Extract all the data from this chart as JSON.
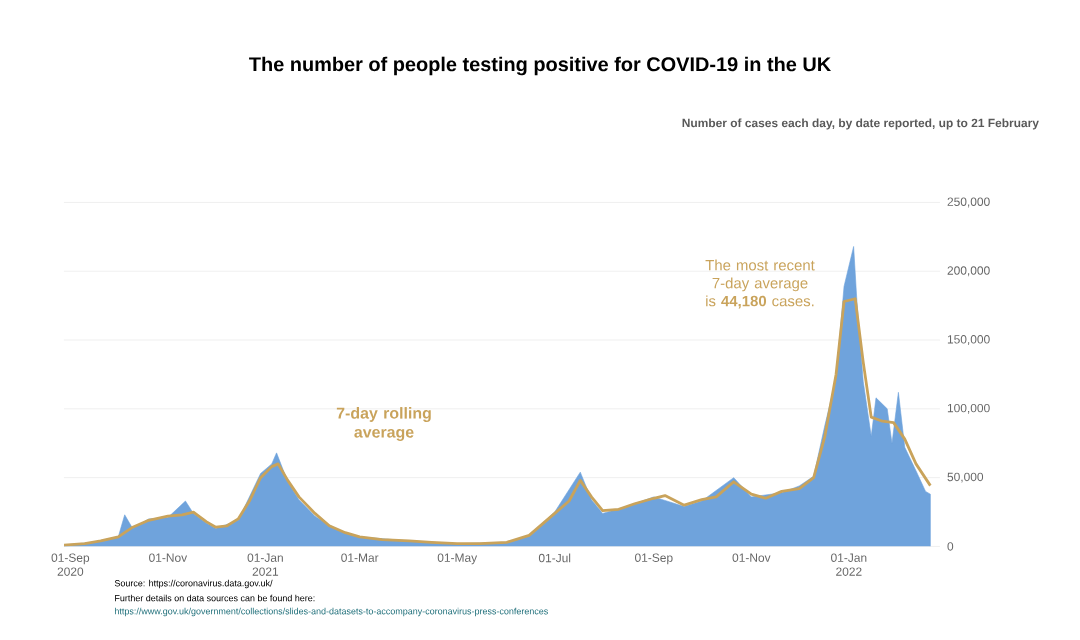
{
  "chart_data": {
    "type": "area",
    "title": "The number of people testing positive for COVID-19 in the UK",
    "subtitle": "Number of cases each day, by date reported, up to 21 February",
    "xlim": [
      "2020-08-28",
      "2022-02-27"
    ],
    "xticks": [
      {
        "value": "2020-09-01",
        "label": "01-Sep 2020"
      },
      {
        "value": "2020-11-01",
        "label": "01-Nov"
      },
      {
        "value": "2021-01-01",
        "label": "01-Jan 2021"
      },
      {
        "value": "2021-03-01",
        "label": "01-Mar"
      },
      {
        "value": "2021-05-01",
        "label": "01-May"
      },
      {
        "value": "2021-07-01",
        "label": "01-Jul"
      },
      {
        "value": "2021-09-01",
        "label": "01-Sep"
      },
      {
        "value": "2021-11-01",
        "label": "01-Nov"
      },
      {
        "value": "2022-01-01",
        "label": "01-Jan 2022"
      }
    ],
    "ylim": [
      0,
      250000
    ],
    "yticks": [
      {
        "value": 0,
        "label": "0"
      },
      {
        "value": 50000,
        "label": "50,000"
      },
      {
        "value": 100000,
        "label": "100,000"
      },
      {
        "value": 150000,
        "label": "150,000"
      },
      {
        "value": 200000,
        "label": "200,000"
      },
      {
        "value": 250000,
        "label": "250,000"
      }
    ],
    "grid": "y",
    "series": [
      {
        "color": "#6fa3dc",
        "x": [
          "2020-08-28",
          "2020-09-15",
          "2020-10-01",
          "2020-10-05",
          "2020-10-10",
          "2020-10-20",
          "2020-11-01",
          "2020-11-12",
          "2020-11-17",
          "2020-11-25",
          "2020-12-01",
          "2020-12-15",
          "2020-12-22",
          "2020-12-29",
          "2021-01-05",
          "2021-01-08",
          "2021-01-15",
          "2021-01-22",
          "2021-02-01",
          "2021-02-15",
          "2021-03-01",
          "2021-04-01",
          "2021-05-01",
          "2021-06-01",
          "2021-06-15",
          "2021-07-01",
          "2021-07-17",
          "2021-07-24",
          "2021-07-31",
          "2021-08-15",
          "2021-09-01",
          "2021-09-20",
          "2021-10-01",
          "2021-10-21",
          "2021-11-01",
          "2021-11-20",
          "2021-12-01",
          "2021-12-10",
          "2021-12-17",
          "2021-12-24",
          "2021-12-29",
          "2022-01-04",
          "2022-01-06",
          "2022-01-10",
          "2022-01-15",
          "2022-01-18",
          "2022-01-25",
          "2022-01-28",
          "2022-02-01",
          "2022-02-05",
          "2022-02-12",
          "2022-02-18",
          "2022-02-21"
        ],
        "values": [
          1000,
          3000,
          7000,
          23000,
          13000,
          20000,
          21000,
          33000,
          24000,
          17000,
          13000,
          19000,
          36000,
          53000,
          60000,
          68000,
          47000,
          34000,
          22000,
          12000,
          7000,
          4000,
          2000,
          3000,
          8000,
          25000,
          54000,
          34000,
          24000,
          29000,
          36000,
          29000,
          33000,
          50000,
          36000,
          39000,
          44000,
          51000,
          88000,
          122000,
          189000,
          218000,
          179000,
          120000,
          80000,
          108000,
          100000,
          75000,
          112000,
          72000,
          55000,
          40000,
          38000
        ]
      },
      {
        "type": "line",
        "color": "#c9a35b",
        "x": [
          "2020-08-28",
          "2020-09-10",
          "2020-09-20",
          "2020-10-01",
          "2020-10-10",
          "2020-10-20",
          "2020-11-01",
          "2020-11-10",
          "2020-11-17",
          "2020-11-25",
          "2020-12-01",
          "2020-12-08",
          "2020-12-15",
          "2020-12-22",
          "2020-12-29",
          "2021-01-05",
          "2021-01-09",
          "2021-01-15",
          "2021-01-22",
          "2021-02-01",
          "2021-02-10",
          "2021-02-20",
          "2021-03-01",
          "2021-03-15",
          "2021-04-01",
          "2021-04-15",
          "2021-05-01",
          "2021-05-15",
          "2021-06-01",
          "2021-06-15",
          "2021-07-01",
          "2021-07-10",
          "2021-07-17",
          "2021-07-24",
          "2021-07-31",
          "2021-08-10",
          "2021-08-20",
          "2021-09-01",
          "2021-09-08",
          "2021-09-20",
          "2021-10-01",
          "2021-10-10",
          "2021-10-21",
          "2021-11-01",
          "2021-11-10",
          "2021-11-20",
          "2021-12-01",
          "2021-12-10",
          "2021-12-17",
          "2021-12-24",
          "2021-12-29",
          "2022-01-05",
          "2022-01-10",
          "2022-01-15",
          "2022-01-22",
          "2022-01-29",
          "2022-02-05",
          "2022-02-12",
          "2022-02-21"
        ],
        "values": [
          1000,
          2000,
          4000,
          7000,
          14000,
          19000,
          22000,
          23000,
          25000,
          18000,
          14000,
          15000,
          20000,
          33000,
          50000,
          58000,
          60000,
          48000,
          36000,
          24000,
          15000,
          10000,
          7000,
          5000,
          4000,
          3000,
          2000,
          2000,
          3000,
          8000,
          24000,
          33000,
          48000,
          36000,
          26000,
          27000,
          31000,
          35000,
          37000,
          30000,
          34000,
          36000,
          47000,
          38000,
          35000,
          40000,
          42000,
          50000,
          80000,
          125000,
          178000,
          180000,
          134000,
          94000,
          91000,
          90000,
          78000,
          60000,
          44180
        ]
      }
    ],
    "annotations": [
      "7-day rolling average",
      "The most recent 7-day average is **44,180** cases.",
      "Source: https://coronavirus.data.gov.uk/",
      "Further details on data sources can be found here:",
      "https://www.gov.uk/government/collections/slides-and-datasets-to-accompany-coronavirus-press-conferences"
    ]
  }
}
